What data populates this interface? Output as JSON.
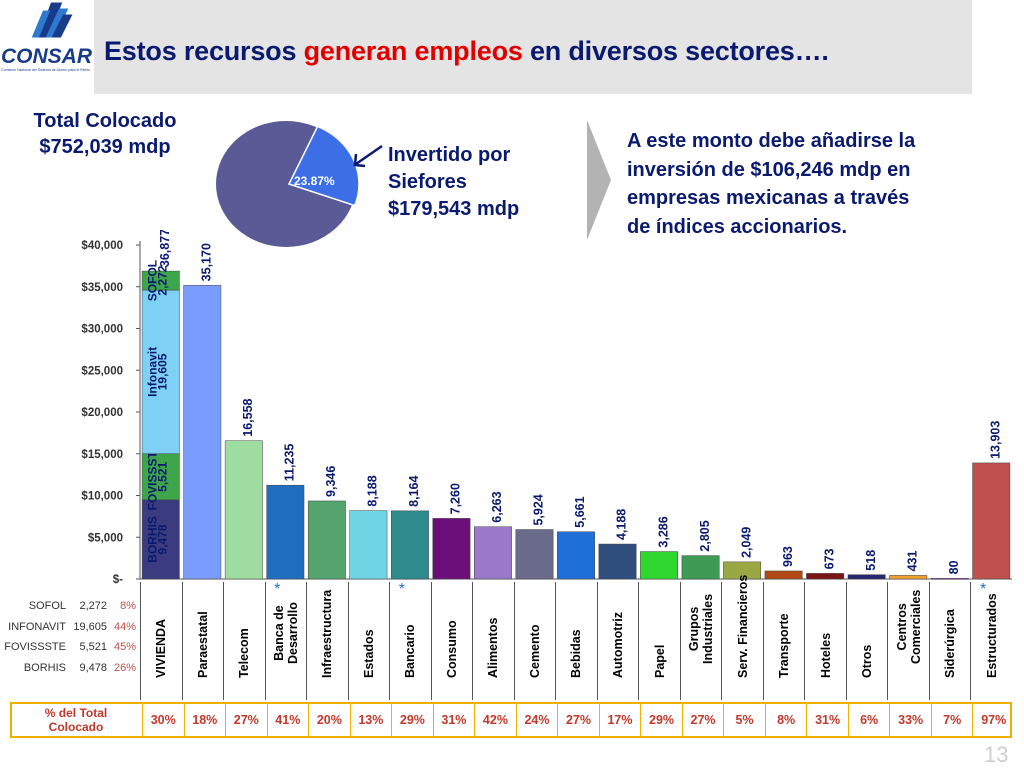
{
  "header": {
    "logo_text": "CONSAR",
    "logo_subtext": "Comisión Nacional del Sistema de Ahorro para el Retiro",
    "title_pre": "Estos recursos ",
    "title_highlight": "generan empleos",
    "title_post": " en diversos sectores…."
  },
  "summary": {
    "total_label": "Total Colocado",
    "total_value": "$752,039  mdp",
    "pie_slice_label": "23.87%",
    "pie_slice_fraction": 0.2387,
    "arrow_glyph": "←",
    "invest_line1": "Invertido por",
    "invest_line2": "Siefores",
    "invest_line3": "$179,543  mdp",
    "note_line1": "A este monto debe añadirse la",
    "note_line2": "inversión de  $106,246 mdp en",
    "note_line3": "empresas mexicanas a través",
    "note_line4": "de índices accionarios."
  },
  "colors": {
    "title_navy": "#0a1a6e",
    "highlight_red": "#e00000",
    "pie_main": "#5a5a96",
    "pie_slice": "#3c6ee6",
    "table_border": "#f0b000",
    "pct_text": "#c0392b"
  },
  "chart_data": {
    "type": "bar",
    "ylim": [
      0,
      40000
    ],
    "yticks": [
      0,
      5000,
      10000,
      15000,
      20000,
      25000,
      30000,
      35000,
      40000
    ],
    "ytick_labels": [
      "$-",
      "$5,000",
      "$10,000",
      "$15,000",
      "$20,000",
      "$25,000",
      "$30,000",
      "$35,000",
      "$40,000"
    ],
    "grid": false,
    "categories": [
      "VIVIENDA",
      "Paraestatal",
      "Telecom",
      "Banca de Desarrollo",
      "Infraestructura",
      "Estados",
      "Bancario",
      "Consumo",
      "Alimentos",
      "Cemento",
      "Bebidas",
      "Automotriz",
      "Papel",
      "Grupos Industriales",
      "Serv. Financieros",
      "Transporte",
      "Hoteles",
      "Otros",
      "Centros Comerciales",
      "Siderúrgica",
      "Estructurados"
    ],
    "values": [
      36877,
      35170,
      16558,
      11235,
      9346,
      8188,
      8164,
      7260,
      6263,
      5924,
      5661,
      4188,
      3286,
      2805,
      2049,
      963,
      673,
      518,
      431,
      80,
      13903
    ],
    "value_labels": [
      "36,877",
      "35,170",
      "16,558",
      "11,235",
      "9,346",
      "8,188",
      "8,164",
      "7,260",
      "6,263",
      "5,924",
      "5,661",
      "4,188",
      "3,286",
      "2,805",
      "2,049",
      "963",
      "673",
      "518",
      "431",
      "80",
      "13,903"
    ],
    "bar_colors": [
      "#2e8b57",
      "#7a9cff",
      "#9fdc9f",
      "#1f6fc0",
      "#55a46e",
      "#6fd4e4",
      "#2f8b8b",
      "#6c0f7a",
      "#9a7ac8",
      "#6a6a8a",
      "#1f6fd8",
      "#2f4e7e",
      "#2ed82e",
      "#3d9b55",
      "#9aa844",
      "#b24a18",
      "#7a1515",
      "#26276e",
      "#f0a030",
      "#9b2ab2",
      "#c0504d"
    ],
    "starred": [
      "Banca de Desarrollo",
      "Bancario",
      "Estructurados"
    ],
    "asterisk": "*",
    "vivienda_segments": [
      {
        "name": "BORHIS",
        "value": 9478,
        "label": "9,478",
        "color": "#3b3b80"
      },
      {
        "name": "FOVISSSTE",
        "value": 5521,
        "label": "5,521",
        "color": "#3da54a"
      },
      {
        "name": "Infonavit",
        "value": 19605,
        "label": "19,605",
        "color": "#7fd0f5"
      },
      {
        "name": "SOFOL",
        "value": 2272,
        "label": "2,272",
        "color": "#3da54a"
      }
    ],
    "pct_of_total": [
      "30%",
      "18%",
      "27%",
      "41%",
      "20%",
      "13%",
      "29%",
      "31%",
      "42%",
      "24%",
      "27%",
      "17%",
      "29%",
      "27%",
      "5%",
      "8%",
      "31%",
      "6%",
      "33%",
      "7%",
      "97%"
    ]
  },
  "mini_table": [
    {
      "name": "SOFOL",
      "value": "2,272",
      "pct": "8%"
    },
    {
      "name": "INFONAVIT",
      "value": "19,605",
      "pct": "44%"
    },
    {
      "name": "FOVISSSTE",
      "value": "5,521",
      "pct": "45%"
    },
    {
      "name": "BORHIS",
      "value": "9,478",
      "pct": "26%"
    }
  ],
  "pct_row_label_line1": "% del Total",
  "pct_row_label_line2": "Colocado",
  "page_number": "13"
}
